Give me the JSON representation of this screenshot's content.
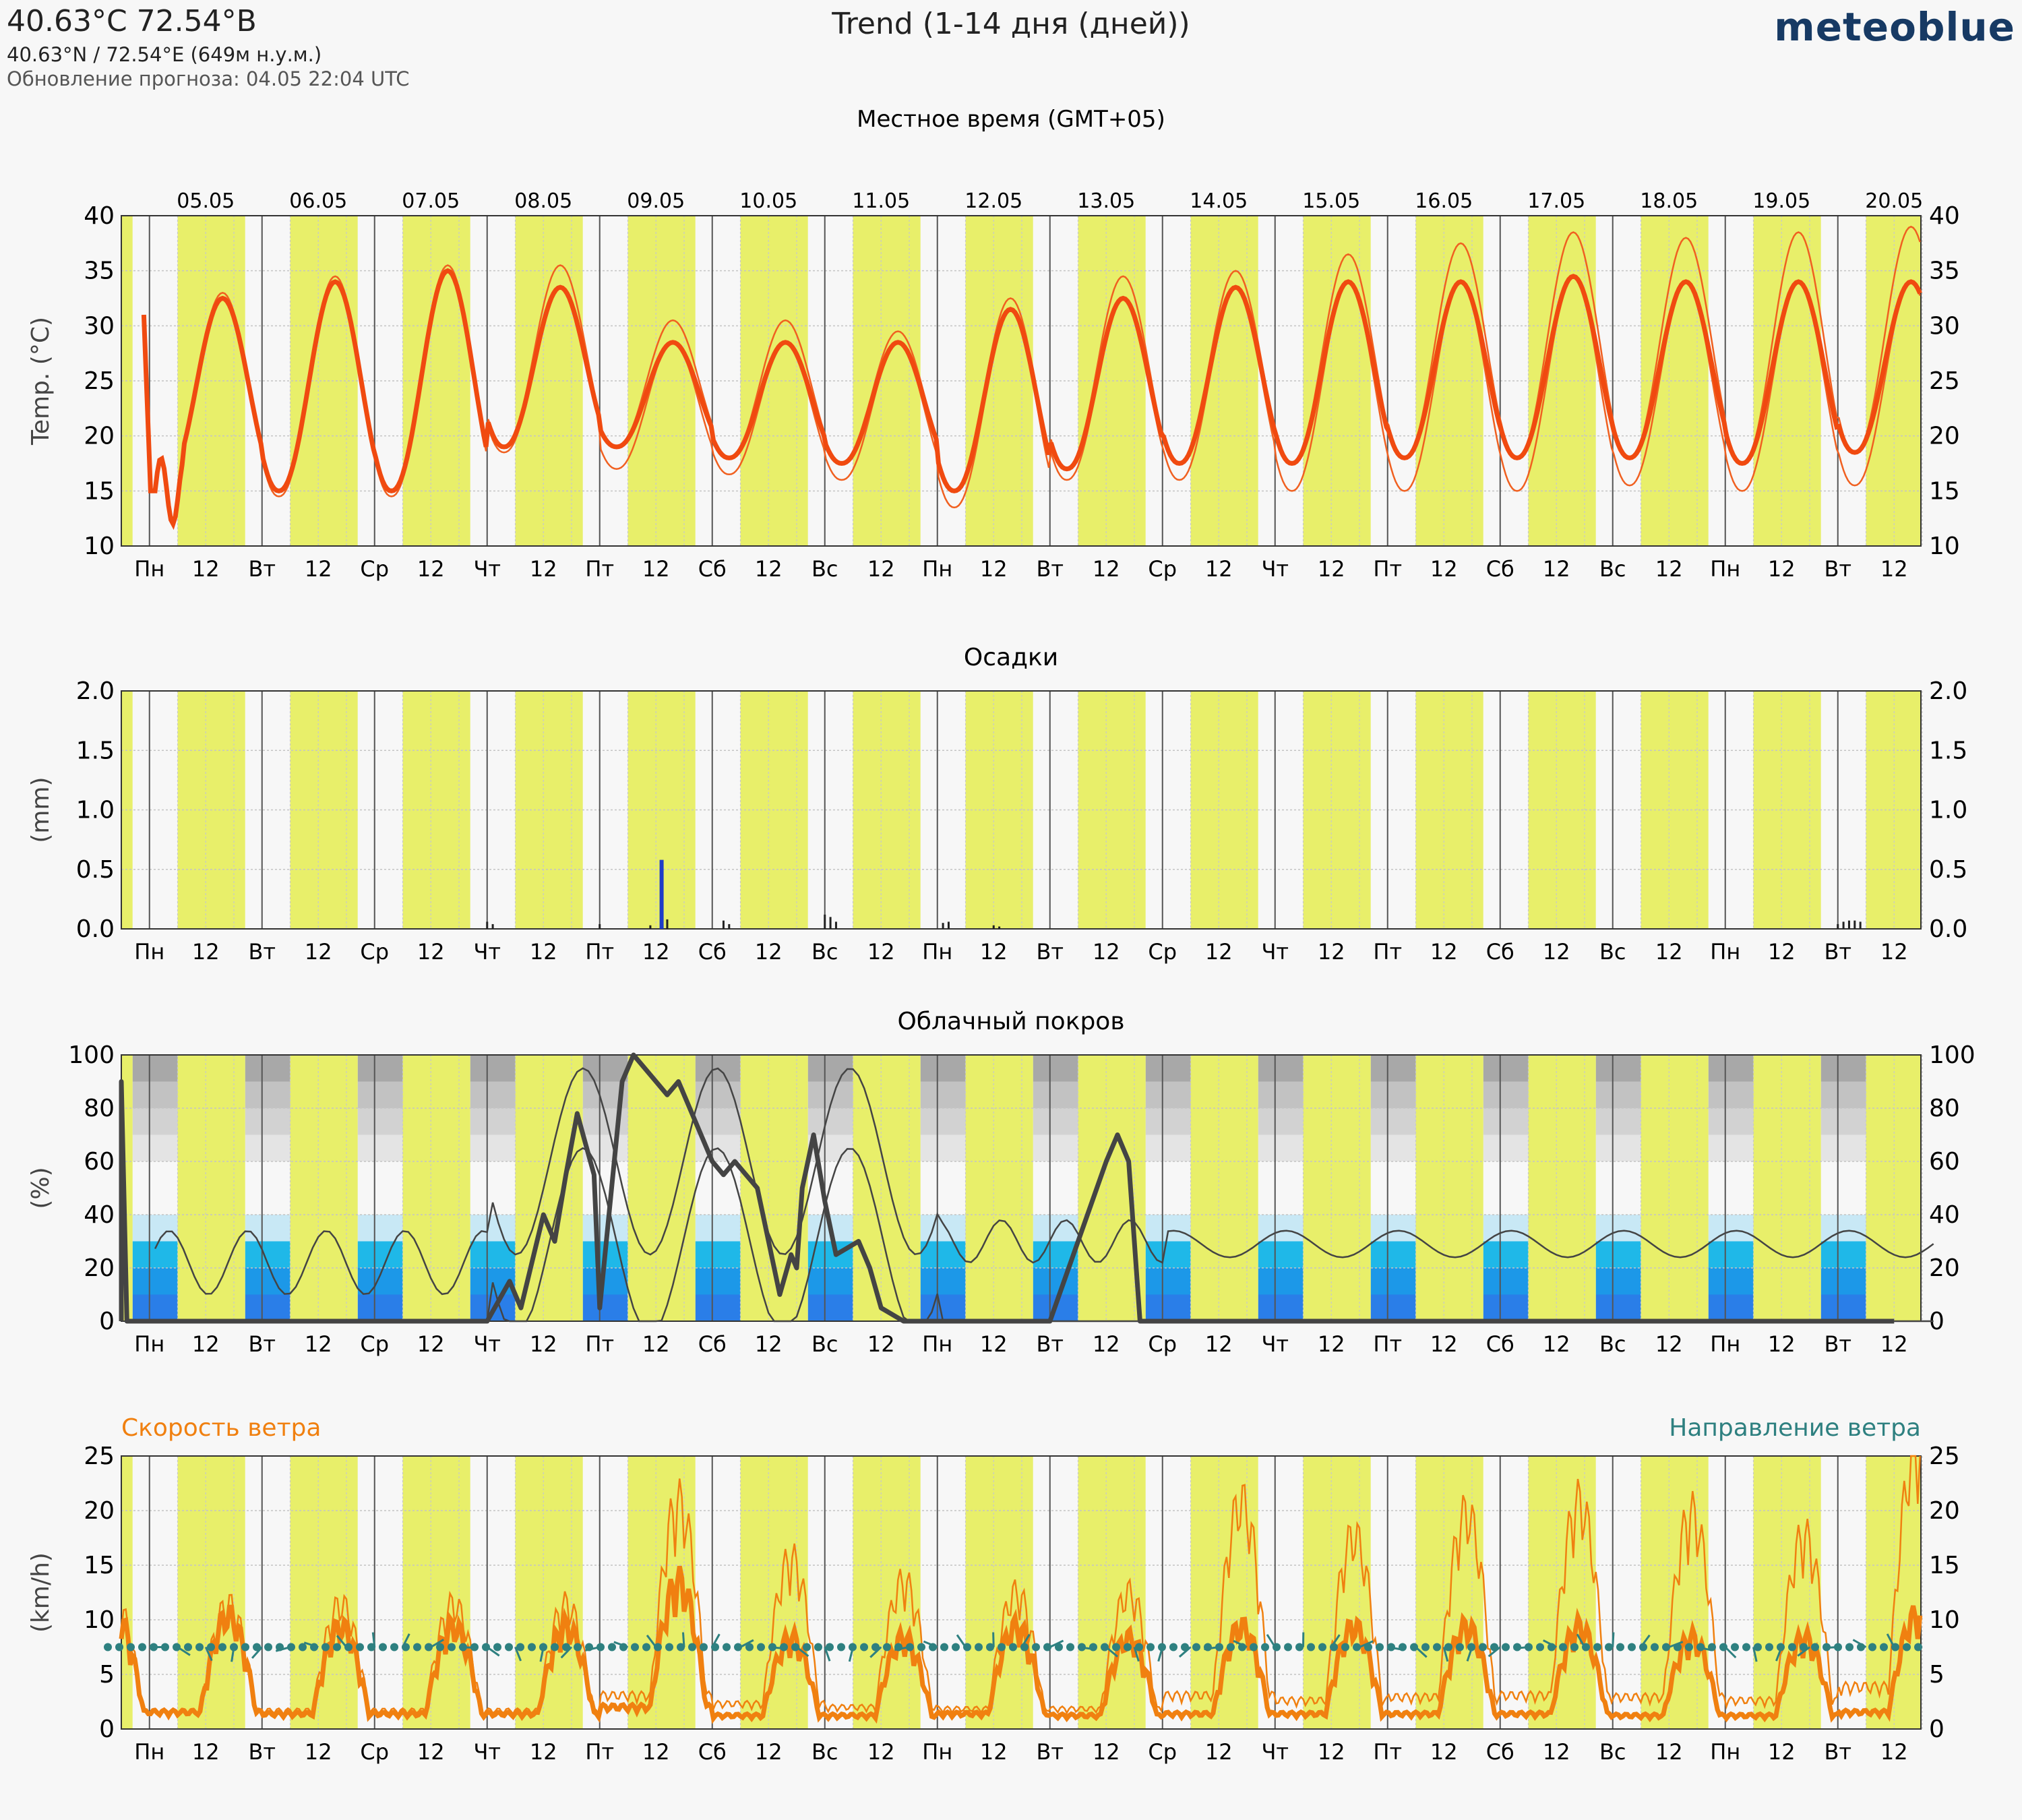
{
  "header": {
    "location": "40.63°C 72.54°B",
    "coords": "40.63°N / 72.54°E (649м н.у.м.)",
    "update": "Обновление прогноза: 04.05 22:04 UTC",
    "title": "Trend (1-14 дня (дней))",
    "brand": "meteoblue",
    "local_time": "Местное время (GMT+05)"
  },
  "dates": [
    "05.05",
    "06.05",
    "07.05",
    "08.05",
    "09.05",
    "10.05",
    "11.05",
    "12.05",
    "13.05",
    "14.05",
    "15.05",
    "16.05",
    "17.05",
    "18.05",
    "19.05",
    "20.05"
  ],
  "weekdays": [
    "Пн",
    "Вт",
    "Ср",
    "Чт",
    "Пт",
    "Сб",
    "Вс",
    "Пн",
    "Вт",
    "Ср",
    "Чт",
    "Пт",
    "Сб",
    "Вс",
    "Пн",
    "Вт"
  ],
  "noon_label": "12",
  "colors": {
    "daylight": "#e8ef6a",
    "temperature": "#f04a10",
    "precipitation": "#1f3cc8",
    "cloud_line": "#444444",
    "wind_speed": "#f08010",
    "wind_direction": "#2e8080",
    "low_cloud_blue": "#1fb8e8"
  },
  "chart_data": [
    {
      "type": "line",
      "title": "",
      "ylabel": "Temp. (°C)",
      "ylim": [
        10,
        40
      ],
      "yticks": [
        10,
        15,
        20,
        25,
        30,
        35,
        40
      ],
      "x_unit": "days since 05.05 00:00 local",
      "daily_max_mean": [
        32.5,
        34,
        35,
        33.5,
        28.5,
        28.5,
        28.5,
        31.5,
        32.5,
        33.5,
        34,
        34,
        34.5,
        34,
        34,
        34
      ],
      "daily_min_mean": [
        16,
        15,
        15,
        19,
        19,
        18,
        17.5,
        15,
        17,
        17.5,
        17.5,
        18,
        18,
        18,
        17.5,
        18.5
      ],
      "spread_upper_max": [
        33,
        34.5,
        35.5,
        35.5,
        30.5,
        30.5,
        29.5,
        32.5,
        34.5,
        35,
        36.5,
        37.5,
        38.5,
        38,
        38.5,
        39
      ],
      "spread_lower_min": [
        15.5,
        14.5,
        14.5,
        18.5,
        17,
        16.5,
        16,
        13.5,
        16,
        16,
        15,
        15,
        15,
        15.5,
        15,
        15.5
      ]
    },
    {
      "type": "bar",
      "title": "Осадки",
      "ylabel": "(mm)",
      "ylim": [
        0,
        2.0
      ],
      "yticks": [
        0.0,
        0.5,
        1.0,
        1.5,
        2.0
      ],
      "x": [
        3.0,
        3.05,
        4.0,
        4.45,
        4.55,
        4.6,
        5.1,
        5.15,
        6.0,
        6.05,
        6.1,
        7.05,
        7.1,
        7.5,
        7.55,
        15.0,
        15.05,
        15.1,
        15.15,
        15.2
      ],
      "values": [
        0.06,
        0.04,
        0.04,
        0.03,
        0.58,
        0.08,
        0.07,
        0.04,
        0.12,
        0.1,
        0.06,
        0.05,
        0.06,
        0.03,
        0.02,
        0.04,
        0.06,
        0.07,
        0.07,
        0.06
      ]
    },
    {
      "type": "line",
      "title": "Облачный покров",
      "ylabel": "(%)",
      "ylim": [
        0,
        100
      ],
      "yticks": [
        0,
        20,
        40,
        60,
        80,
        100
      ],
      "series": [
        {
          "x": [
            -0.3,
            -0.25,
            -0.2,
            -0.15,
            0.5,
            1.0,
            2.0,
            3.0,
            3.2,
            3.3,
            3.5,
            3.6,
            3.7,
            3.8,
            3.95,
            4.0,
            4.2,
            4.3,
            4.5,
            4.6,
            4.7,
            4.9,
            5.0,
            5.1,
            5.2,
            5.3,
            5.4,
            5.5,
            5.6,
            5.7,
            5.75,
            5.8,
            5.9,
            6.0,
            6.1,
            6.3,
            6.4,
            6.5,
            6.7,
            6.9,
            7.0,
            8.0,
            8.5,
            8.6,
            8.7,
            8.8,
            9.0,
            15.5
          ],
          "y": [
            0,
            90,
            0,
            0,
            0,
            0,
            0,
            0,
            15,
            5,
            40,
            30,
            55,
            78,
            55,
            5,
            90,
            100,
            90,
            85,
            90,
            70,
            60,
            55,
            60,
            55,
            50,
            30,
            10,
            25,
            20,
            50,
            70,
            45,
            25,
            30,
            20,
            5,
            0,
            0,
            0,
            0,
            60,
            70,
            60,
            0,
            0,
            0
          ]
        }
      ]
    },
    {
      "type": "line",
      "title": "",
      "ylabel": "(km/h)",
      "ylim": [
        0,
        25
      ],
      "yticks": [
        0,
        5,
        10,
        15,
        20,
        25
      ],
      "speed_label": "Скорость ветра",
      "direction_label": "Направление ветра",
      "daily_mean_peak": [
        10,
        9,
        9,
        9,
        13,
        8,
        8,
        9,
        8,
        9,
        9,
        9,
        9,
        8,
        8,
        10
      ],
      "daily_spread_peak": [
        11,
        11,
        11,
        11,
        20,
        15,
        13,
        12,
        12,
        20,
        17,
        19,
        20,
        19,
        17,
        25
      ]
    }
  ]
}
